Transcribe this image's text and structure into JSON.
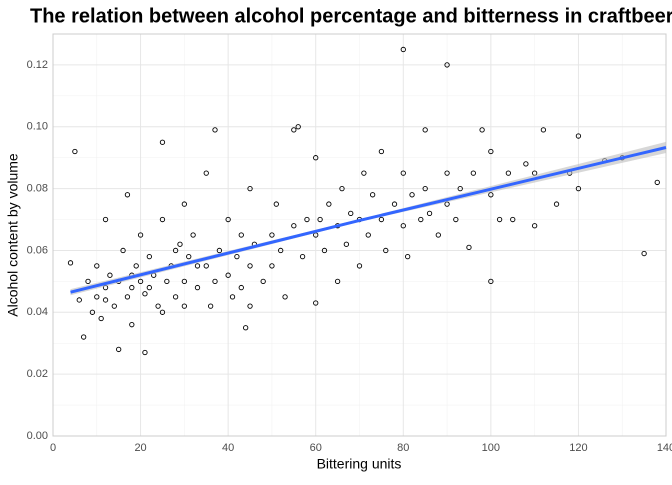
{
  "chart_data": {
    "type": "scatter",
    "title": "The relation between alcohol percentage and bitterness in craftbeer",
    "x_label": "Bittering units",
    "y_label": "Alcohol content by volume",
    "xlim": [
      0,
      140
    ],
    "ylim": [
      0,
      0.13
    ],
    "xticks": [
      0,
      20,
      40,
      60,
      80,
      100,
      120,
      140
    ],
    "xminorticks": [
      10,
      30,
      50,
      70,
      90,
      110,
      130
    ],
    "yticks": [
      {
        "value": 0,
        "label": "0.00"
      },
      0.02,
      0.04,
      0.06,
      0.08,
      {
        "value": 0.1,
        "label": "0.10"
      },
      0.12
    ],
    "yminorticks": [
      0.01,
      0.03,
      0.05,
      0.07,
      0.09,
      0.11,
      0.13
    ],
    "grid": true,
    "point_color": "#000000",
    "x": [
      4,
      5,
      6,
      7,
      8,
      9,
      10,
      10,
      11,
      12,
      12,
      13,
      14,
      15,
      15,
      16,
      17,
      17,
      18,
      18,
      19,
      20,
      20,
      21,
      21,
      22,
      23,
      24,
      25,
      25,
      26,
      27,
      28,
      29,
      30,
      30,
      31,
      32,
      33,
      35,
      35,
      36,
      37,
      38,
      40,
      40,
      41,
      42,
      43,
      44,
      45,
      45,
      46,
      48,
      50,
      50,
      51,
      52,
      53,
      55,
      55,
      56,
      57,
      58,
      60,
      60,
      60,
      61,
      62,
      63,
      65,
      65,
      66,
      67,
      68,
      70,
      70,
      71,
      72,
      73,
      75,
      75,
      76,
      78,
      80,
      80,
      80,
      81,
      82,
      84,
      85,
      85,
      86,
      88,
      90,
      90,
      90,
      92,
      93,
      95,
      96,
      98,
      100,
      100,
      100,
      102,
      104,
      105,
      108,
      110,
      110,
      112,
      115,
      118,
      120,
      120,
      126,
      130,
      135,
      138,
      43,
      37,
      45,
      22,
      25,
      30,
      33,
      28,
      18,
      12
    ],
    "values": [
      0.056,
      0.092,
      0.044,
      0.032,
      0.05,
      0.04,
      0.055,
      0.045,
      0.038,
      0.048,
      0.07,
      0.052,
      0.042,
      0.028,
      0.05,
      0.06,
      0.045,
      0.078,
      0.048,
      0.036,
      0.055,
      0.05,
      0.065,
      0.027,
      0.046,
      0.058,
      0.052,
      0.042,
      0.07,
      0.095,
      0.05,
      0.055,
      0.045,
      0.062,
      0.05,
      0.075,
      0.058,
      0.065,
      0.048,
      0.055,
      0.085,
      0.042,
      0.099,
      0.06,
      0.052,
      0.07,
      0.045,
      0.058,
      0.065,
      0.035,
      0.055,
      0.08,
      0.062,
      0.05,
      0.065,
      0.055,
      0.075,
      0.06,
      0.045,
      0.068,
      0.099,
      0.1,
      0.058,
      0.07,
      0.065,
      0.043,
      0.09,
      0.07,
      0.06,
      0.075,
      0.068,
      0.05,
      0.08,
      0.062,
      0.072,
      0.07,
      0.055,
      0.085,
      0.065,
      0.078,
      0.07,
      0.092,
      0.06,
      0.075,
      0.068,
      0.125,
      0.085,
      0.058,
      0.078,
      0.07,
      0.08,
      0.099,
      0.072,
      0.065,
      0.075,
      0.12,
      0.085,
      0.07,
      0.08,
      0.061,
      0.085,
      0.099,
      0.078,
      0.05,
      0.092,
      0.07,
      0.085,
      0.07,
      0.088,
      0.085,
      0.068,
      0.099,
      0.075,
      0.085,
      0.097,
      0.08,
      0.089,
      0.09,
      0.059,
      0.082,
      0.048,
      0.05,
      0.042,
      0.048,
      0.04,
      0.042,
      0.055,
      0.06,
      0.052,
      0.044
    ],
    "fit": {
      "color": "#3366ff",
      "band_color": "#bdbdbd",
      "x": [
        4,
        70,
        140
      ],
      "values": [
        0.0465,
        0.0697,
        0.0933
      ],
      "lower": [
        0.0455,
        0.0693,
        0.0915
      ],
      "upper": [
        0.0475,
        0.0701,
        0.0951
      ]
    }
  }
}
